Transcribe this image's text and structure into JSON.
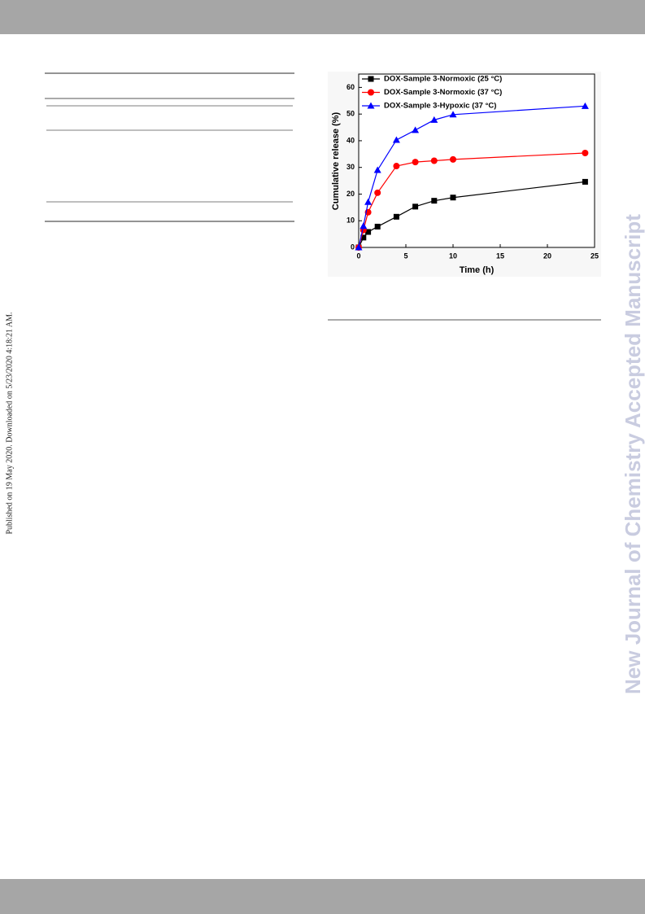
{
  "sidebar_text": "Published on 19 May 2020. Downloaded on 5/23/2020 4:18:21 AM.",
  "watermark": "New Journal of Chemistry Accepted Manuscript",
  "chart_data": {
    "type": "line",
    "xlabel": "Time (h)",
    "ylabel": "Cumulative release (%)",
    "x": [
      0,
      0.5,
      1,
      2,
      4,
      6,
      8,
      10,
      24
    ],
    "series": [
      {
        "name": "DOX-Sample 3-Normoxic (25 °C)",
        "color": "#000000",
        "marker": "square",
        "values": [
          0,
          3.7,
          5.8,
          7.8,
          11.5,
          15.3,
          17.5,
          18.7,
          24.6
        ]
      },
      {
        "name": "DOX-Sample 3-Normoxic (37 °C)",
        "color": "#ff0000",
        "marker": "circle",
        "values": [
          0,
          6.5,
          13.2,
          20.5,
          30.5,
          32,
          32.5,
          33,
          35.4
        ]
      },
      {
        "name": "DOX-Sample 3-Hypoxic (37 °C)",
        "color": "#0000ff",
        "marker": "triangle",
        "values": [
          0,
          8,
          17,
          29,
          40.3,
          44,
          47.8,
          49.8,
          53
        ]
      }
    ],
    "xlim": [
      0,
      25
    ],
    "xticks": [
      0,
      5,
      10,
      15,
      20,
      25
    ],
    "ylim": [
      0,
      65
    ],
    "yticks": [
      0,
      10,
      20,
      30,
      40,
      50,
      60
    ],
    "legend": "upper-left"
  }
}
